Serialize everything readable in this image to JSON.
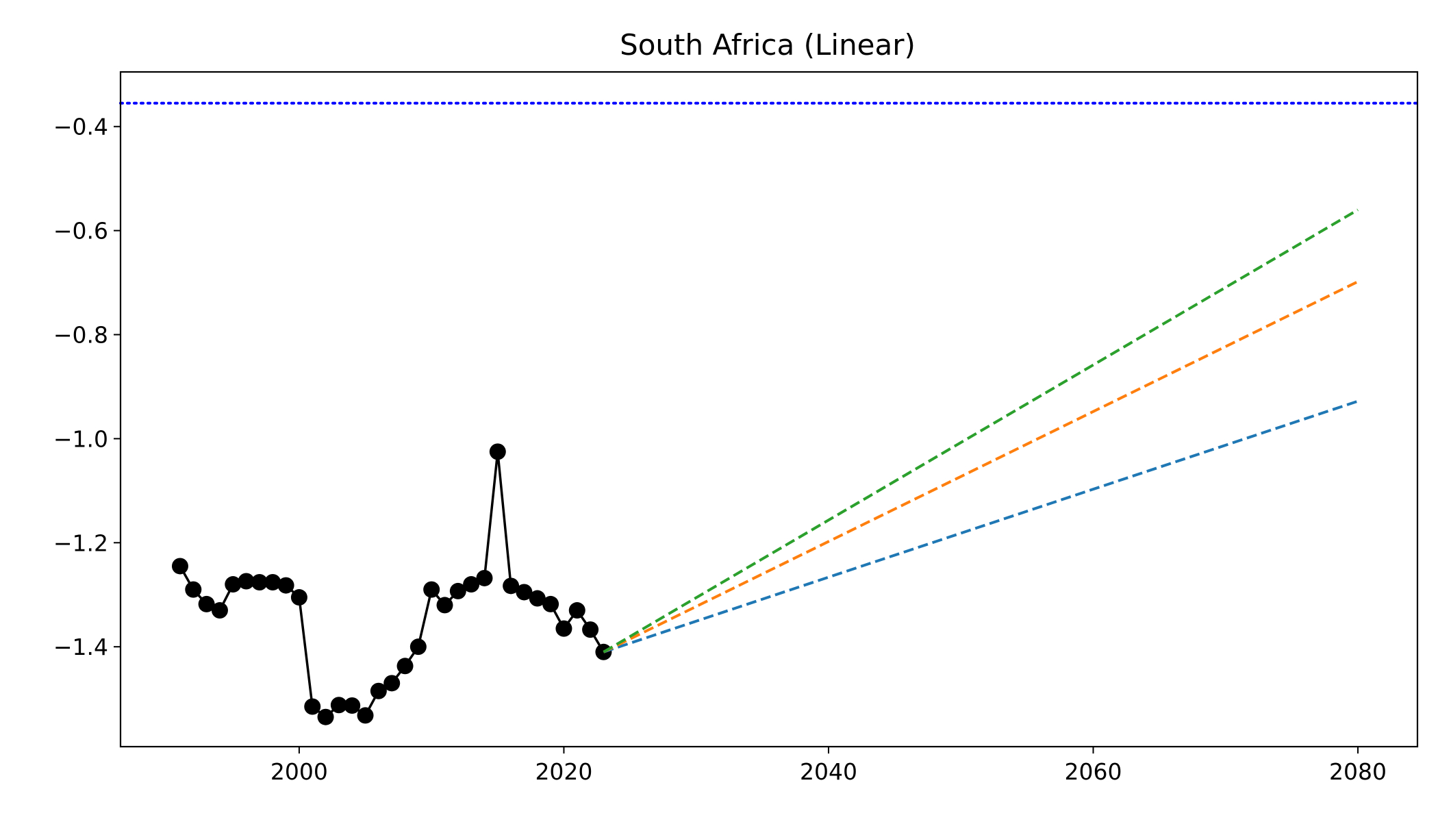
{
  "chart_data": {
    "type": "line",
    "title": "South Africa (Linear)",
    "xlabel": "",
    "ylabel": "",
    "xlim": [
      1986.5,
      2084.5
    ],
    "ylim": [
      -1.592,
      -0.295
    ],
    "x_ticks": [
      2000,
      2020,
      2040,
      2060,
      2080
    ],
    "y_ticks": [
      -1.4,
      -1.2,
      -1.0,
      -0.8,
      -0.6,
      -0.4
    ],
    "x_tick_labels": [
      "2000",
      "2020",
      "2040",
      "2060",
      "2080"
    ],
    "y_tick_labels": [
      "−1.4",
      "−1.2",
      "−1.0",
      "−0.8",
      "−0.6",
      "−0.4"
    ],
    "grid": false,
    "reference_line": {
      "y": -0.355,
      "color": "#0000ff",
      "style": "dotted"
    },
    "series": [
      {
        "style": "solid-markers",
        "color": "#000000",
        "x": [
          1991,
          1992,
          1993,
          1994,
          1995,
          1996,
          1997,
          1998,
          1999,
          2000,
          2001,
          2002,
          2003,
          2004,
          2005,
          2006,
          2007,
          2008,
          2009,
          2010,
          2011,
          2012,
          2013,
          2014,
          2015,
          2016,
          2017,
          2018,
          2019,
          2020,
          2021,
          2022,
          2023
        ],
        "y": [
          -1.245,
          -1.29,
          -1.318,
          -1.33,
          -1.28,
          -1.274,
          -1.276,
          -1.276,
          -1.282,
          -1.305,
          -1.515,
          -1.535,
          -1.512,
          -1.513,
          -1.532,
          -1.485,
          -1.47,
          -1.437,
          -1.4,
          -1.29,
          -1.32,
          -1.293,
          -1.28,
          -1.268,
          -1.025,
          -1.283,
          -1.295,
          -1.307,
          -1.318,
          -1.365,
          -1.33,
          -1.367,
          -1.41
        ]
      },
      {
        "style": "dashed",
        "color": "#1f77b4",
        "x": [
          2023,
          2080
        ],
        "y": [
          -1.41,
          -0.928
        ]
      },
      {
        "style": "dashed",
        "color": "#ff7f0e",
        "x": [
          2023,
          2080
        ],
        "y": [
          -1.41,
          -0.698
        ]
      },
      {
        "style": "dashed",
        "color": "#2ca02c",
        "x": [
          2023,
          2080
        ],
        "y": [
          -1.41,
          -0.56
        ]
      }
    ]
  }
}
